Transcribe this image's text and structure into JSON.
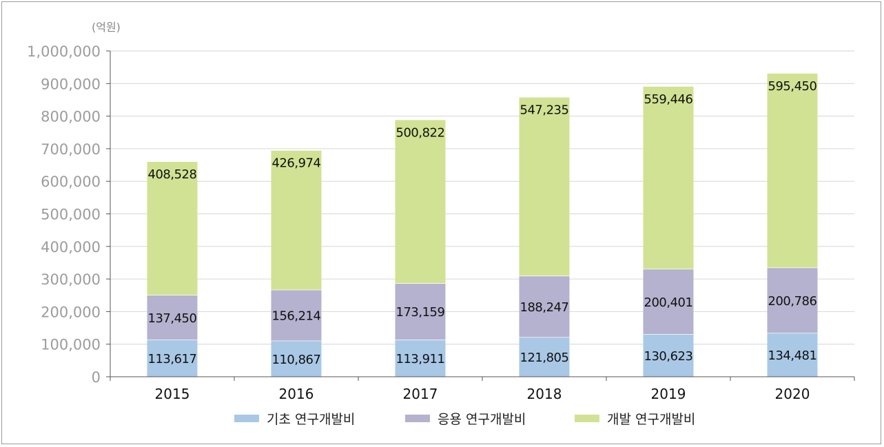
{
  "chart_data": {
    "type": "bar",
    "stacked": true,
    "unit_label": "(억원)",
    "categories": [
      "2015",
      "2016",
      "2017",
      "2018",
      "2019",
      "2020"
    ],
    "series": [
      {
        "name": "기초 연구개발비",
        "color": "#a9c8e6",
        "values": [
          113617,
          110867,
          113911,
          121805,
          130623,
          134481
        ],
        "labels": [
          "113,617",
          "110,867",
          "113,911",
          "121,805",
          "130,623",
          "134,481"
        ]
      },
      {
        "name": "응용 연구개발비",
        "color": "#b5b2cf",
        "values": [
          137450,
          156214,
          173159,
          188247,
          200401,
          200786
        ],
        "labels": [
          "137,450",
          "156,214",
          "173,159",
          "188,247",
          "200,401",
          "200,786"
        ]
      },
      {
        "name": "개발 연구개발비",
        "color": "#d1e294",
        "values": [
          408528,
          426974,
          500822,
          547235,
          559446,
          595450
        ],
        "labels": [
          "408,528",
          "426,974",
          "500,822",
          "547,235",
          "559,446",
          "595,450"
        ]
      }
    ],
    "ylim": [
      0,
      1000000
    ],
    "yticks": [
      0,
      100000,
      200000,
      300000,
      400000,
      500000,
      600000,
      700000,
      800000,
      900000,
      1000000
    ],
    "ytick_labels": [
      "0",
      "100,000",
      "200,000",
      "300,000",
      "400,000",
      "500,000",
      "600,000",
      "700,000",
      "800,000",
      "900,000",
      "1,000,000"
    ],
    "grid": true,
    "legend_position": "bottom"
  }
}
